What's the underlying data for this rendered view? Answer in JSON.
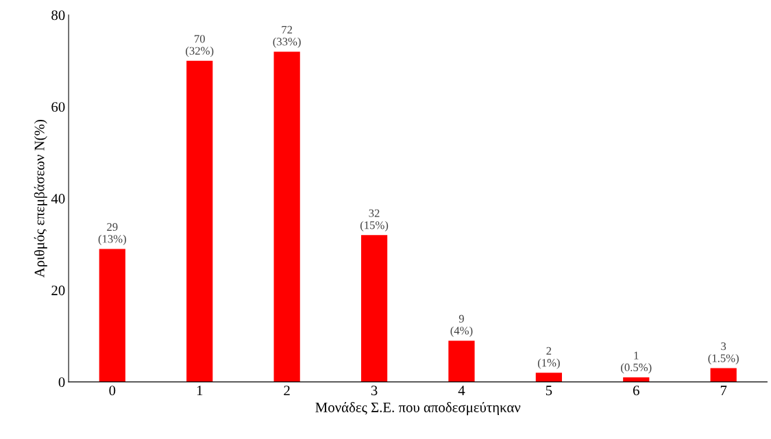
{
  "chart_data": {
    "type": "bar",
    "xlabel": "Μονάδες Σ.Ε. που αποδεσμεύτηκαν",
    "ylabel": "Αριθμός επεμβάσεων N(%)",
    "categories": [
      "0",
      "1",
      "2",
      "3",
      "4",
      "5",
      "6",
      "7"
    ],
    "values": [
      29,
      70,
      72,
      32,
      9,
      2,
      1,
      3
    ],
    "color": "#ff0000",
    "value_labels": [
      "29\n(13%)",
      "70\n(32%)",
      "72\n(33%)",
      "32\n(15%)",
      "9\n(4%)",
      "2\n(1%)",
      "1\n(0.5%)",
      "3\n(1.5%)"
    ],
    "ylim": [
      0,
      80
    ],
    "yticks": [
      0,
      20,
      40,
      60,
      80
    ],
    "grid": false
  }
}
